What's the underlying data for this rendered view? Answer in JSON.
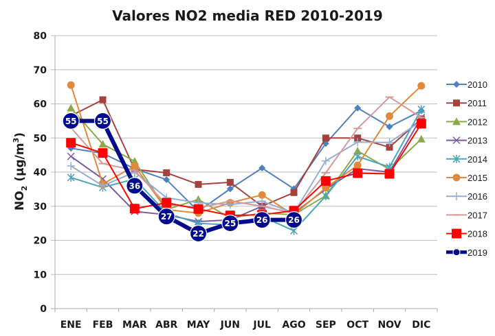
{
  "chart_data": {
    "type": "line",
    "title": "Valores NO2 media RED 2010-2019",
    "xlabel": "",
    "ylabel": "NO₂ (µg/m³)",
    "ylabel_parts": {
      "main": "NO",
      "sub": "2",
      "unit": " (µg/m",
      "sup": "3",
      "close": ")"
    },
    "ylim": [
      0,
      80
    ],
    "yticks": [
      0,
      10,
      20,
      30,
      40,
      50,
      60,
      70,
      80
    ],
    "grid": true,
    "legend_position": "right",
    "categories": [
      "ENE",
      "FEB",
      "MAR",
      "ABR",
      "MAY",
      "JUN",
      "JUL",
      "AGO",
      "SEP",
      "OCT",
      "NOV",
      "DIC"
    ],
    "series": [
      {
        "name": "2010",
        "color": "#4F81BD",
        "marker": "diamond",
        "values": [
          47,
          45.5,
          41,
          37.8,
          28.5,
          35.1,
          41.2,
          35.1,
          48.4,
          58.8,
          53.3,
          58
        ]
      },
      {
        "name": "2011",
        "color": "#A5423E",
        "marker": "square",
        "values": [
          56.5,
          61.2,
          40.8,
          39.8,
          36.4,
          37,
          30,
          34,
          50,
          50,
          47.3,
          55.6
        ]
      },
      {
        "name": "2012",
        "color": "#8BAA4A",
        "marker": "triangle",
        "values": [
          58.8,
          48.2,
          43.2,
          29,
          32,
          26.5,
          28,
          27.5,
          33.1,
          46.2,
          40.8,
          49.7
        ]
      },
      {
        "name": "2013",
        "color": "#7B5A9E",
        "marker": "x",
        "values": [
          44.6,
          38,
          28.5,
          27.5,
          25.5,
          26,
          30,
          28,
          35,
          41,
          40,
          56
        ]
      },
      {
        "name": "2014",
        "color": "#4AA4BC",
        "marker": "star",
        "values": [
          38.4,
          35.5,
          38,
          28,
          25,
          24.5,
          27,
          22.8,
          33,
          44.6,
          41.5,
          58.4
        ]
      },
      {
        "name": "2015",
        "color": "#E0893A",
        "marker": "circle",
        "values": [
          65.5,
          36.5,
          41.8,
          29,
          28,
          31,
          33.3,
          27.5,
          35.4,
          42,
          56.4,
          65.3
        ]
      },
      {
        "name": "2016",
        "color": "#94AED4",
        "marker": "plus",
        "values": [
          41.8,
          36,
          40,
          32.5,
          31,
          30.5,
          31.5,
          28,
          43.3,
          48.8,
          48.7,
          55
        ]
      },
      {
        "name": "2017",
        "color": "#D59A98",
        "marker": "dash",
        "values": [
          53,
          42.5,
          40.5,
          30.5,
          29.5,
          31.5,
          30,
          28,
          39.8,
          52.8,
          62,
          56
        ]
      },
      {
        "name": "2018",
        "color": "#FF0000",
        "marker": "square-big",
        "values": [
          48.6,
          45.6,
          29.3,
          31,
          29.2,
          27.3,
          27.5,
          28.7,
          37.4,
          39.7,
          39.5,
          54.2
        ]
      },
      {
        "name": "2019",
        "color": "#000C8C",
        "marker": "label-circle",
        "values": [
          55,
          55,
          36,
          27,
          22,
          25,
          26,
          26,
          null,
          null,
          null,
          null
        ],
        "data_labels": [
          "55",
          "55",
          "36",
          "27",
          "22",
          "25",
          "26",
          "26"
        ]
      }
    ]
  }
}
